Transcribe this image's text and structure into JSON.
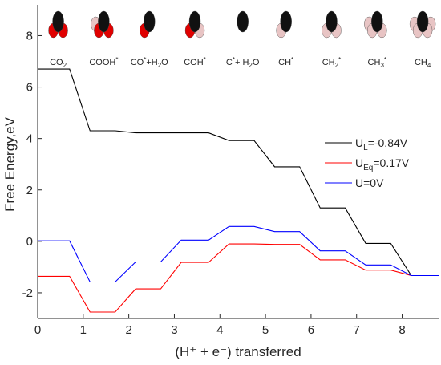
{
  "chart_data": {
    "type": "line",
    "title": "",
    "xlabel": "(H⁺ + e⁻) transferred",
    "ylabel": "Free Energy,eV",
    "xlim": [
      0,
      8.8
    ],
    "ylim": [
      -3,
      9.2
    ],
    "xticks": [
      "0",
      "1",
      "2",
      "3",
      "4",
      "5",
      "6",
      "7",
      "8"
    ],
    "yticks": [
      "-2",
      "0",
      "2",
      "4",
      "6",
      "8"
    ],
    "legend_position": "right",
    "grid": false,
    "series": [
      {
        "name": "U_L=-0.84V",
        "legend_main": "U",
        "legend_sub": "L",
        "legend_rest": "=-0.84V",
        "color": "#000000",
        "x": [
          0,
          0.7,
          1.15,
          1.7,
          2.15,
          2.7,
          3.15,
          3.75,
          4.2,
          4.75,
          5.2,
          5.75,
          6.2,
          6.75,
          7.2,
          7.75,
          8.2,
          8.8
        ],
        "y": [
          6.7,
          6.7,
          4.3,
          4.3,
          4.22,
          4.22,
          4.22,
          4.22,
          3.92,
          3.92,
          2.9,
          2.9,
          1.3,
          1.3,
          -0.08,
          -0.08,
          -1.33,
          -1.33
        ]
      },
      {
        "name": "U_Eq=0.17V",
        "legend_main": "U",
        "legend_sub": "Eq",
        "legend_rest": "=0.17V",
        "color": "#ff0000",
        "x": [
          0,
          0.7,
          1.15,
          1.7,
          2.15,
          2.7,
          3.15,
          3.75,
          4.2,
          4.75,
          5.2,
          5.75,
          6.2,
          6.75,
          7.2,
          7.75,
          8.2,
          8.8
        ],
        "y": [
          -1.36,
          -1.36,
          -2.75,
          -2.75,
          -1.85,
          -1.85,
          -0.82,
          -0.82,
          -0.1,
          -0.1,
          -0.12,
          -0.12,
          -0.72,
          -0.72,
          -1.12,
          -1.12,
          -1.33,
          -1.33
        ]
      },
      {
        "name": "U=0V",
        "legend_main": "U=0V",
        "legend_sub": "",
        "legend_rest": "",
        "color": "#0000ff",
        "x": [
          0,
          0.7,
          1.15,
          1.7,
          2.15,
          2.7,
          3.15,
          3.75,
          4.2,
          4.75,
          5.2,
          5.75,
          6.2,
          6.75,
          7.2,
          7.75,
          8.2,
          8.8
        ],
        "y": [
          0.02,
          0.02,
          -1.58,
          -1.58,
          -0.8,
          -0.8,
          0.05,
          0.05,
          0.58,
          0.58,
          0.38,
          0.38,
          -0.37,
          -0.37,
          -0.92,
          -0.92,
          -1.33,
          -1.33
        ]
      }
    ],
    "annotations": [
      {
        "x": 0.45,
        "parts": [
          [
            "CO",
            ""
          ],
          [
            "2",
            "sub"
          ]
        ]
      },
      {
        "x": 1.45,
        "parts": [
          [
            "COOH",
            ""
          ],
          [
            "*",
            "sup"
          ]
        ]
      },
      {
        "x": 2.45,
        "parts": [
          [
            "CO",
            ""
          ],
          [
            "*",
            "sup"
          ],
          [
            "+H",
            ""
          ],
          [
            "2",
            "sub"
          ],
          [
            "O",
            ""
          ]
        ]
      },
      {
        "x": 3.45,
        "parts": [
          [
            "COH",
            ""
          ],
          [
            "*",
            "sup"
          ]
        ]
      },
      {
        "x": 4.5,
        "parts": [
          [
            "C",
            ""
          ],
          [
            "*",
            "sup"
          ],
          [
            "+ H",
            ""
          ],
          [
            "2",
            "sub"
          ],
          [
            "O",
            ""
          ]
        ]
      },
      {
        "x": 5.45,
        "parts": [
          [
            "CH",
            ""
          ],
          [
            "*",
            "sup"
          ]
        ]
      },
      {
        "x": 6.45,
        "parts": [
          [
            "CH",
            ""
          ],
          [
            "2",
            "sub"
          ],
          [
            "*",
            "sup"
          ]
        ]
      },
      {
        "x": 7.45,
        "parts": [
          [
            "CH",
            ""
          ],
          [
            "3",
            "sub"
          ],
          [
            "*",
            "sup"
          ]
        ]
      },
      {
        "x": 8.45,
        "parts": [
          [
            "CH",
            ""
          ],
          [
            "4",
            "sub"
          ]
        ]
      }
    ],
    "molecule_icons": [
      {
        "name": "co2-molecule-icon",
        "x": 0.45,
        "atoms": [
          "black",
          "red",
          "red"
        ]
      },
      {
        "name": "cooh-molecule-icon",
        "x": 1.45,
        "atoms": [
          "black",
          "red",
          "red",
          "pink"
        ]
      },
      {
        "name": "co-h2o-molecule-icon",
        "x": 2.45,
        "atoms": [
          "black",
          "red"
        ]
      },
      {
        "name": "coh-molecule-icon",
        "x": 3.45,
        "atoms": [
          "black",
          "red",
          "pink"
        ]
      },
      {
        "name": "c-h2o-molecule-icon",
        "x": 4.5,
        "atoms": [
          "black"
        ]
      },
      {
        "name": "ch-molecule-icon",
        "x": 5.45,
        "atoms": [
          "black",
          "pink"
        ]
      },
      {
        "name": "ch2-molecule-icon",
        "x": 6.45,
        "atoms": [
          "black",
          "pink",
          "pink"
        ]
      },
      {
        "name": "ch3-molecule-icon",
        "x": 7.45,
        "atoms": [
          "black",
          "pink",
          "pink",
          "pink"
        ]
      },
      {
        "name": "ch4-molecule-icon",
        "x": 8.45,
        "atoms": [
          "black",
          "pink",
          "pink",
          "pink",
          "pink"
        ]
      }
    ]
  }
}
